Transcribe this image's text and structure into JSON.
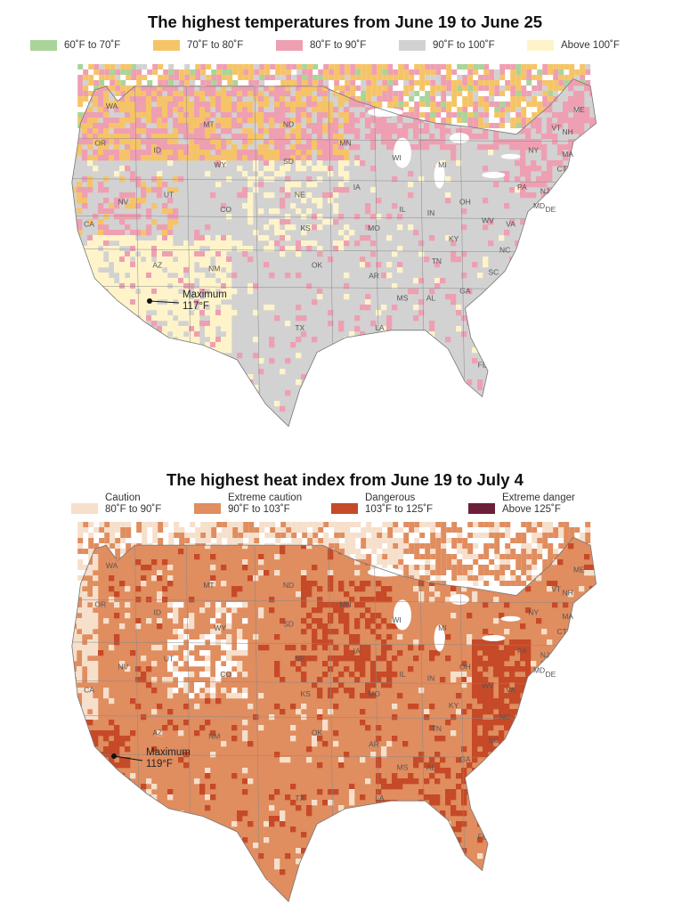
{
  "panels": [
    {
      "title": "The highest temperatures from June 19 to June 25",
      "legend": [
        {
          "label": "60˚F to 70˚F",
          "color": "#a9d49a"
        },
        {
          "label": "70˚F to 80˚F",
          "color": "#f6c468"
        },
        {
          "label": "80˚F to 90˚F",
          "color": "#ef9fb2"
        },
        {
          "label": "90˚F to 100˚F",
          "color": "#d2d2d2"
        },
        {
          "label": "Above 100˚F",
          "color": "#fff4c9"
        }
      ],
      "annotation": {
        "label": "Maximum",
        "value": "117°F"
      }
    },
    {
      "title": "The highest heat index from June 19 to July 4",
      "legend": [
        {
          "line1": "Caution",
          "line2": "80˚F to 90˚F",
          "color": "#f6dfcb"
        },
        {
          "line1": "Extreme caution",
          "line2": "90˚F to 103˚F",
          "color": "#e08d5f"
        },
        {
          "line1": "Dangerous",
          "line2": "103˚F to 125˚F",
          "color": "#c64a27"
        },
        {
          "line1": "Extreme danger",
          "line2": "Above 125˚F",
          "color": "#6b1f3b"
        }
      ],
      "annotation": {
        "label": "Maximum",
        "value": "119°F"
      }
    }
  ],
  "state_labels": [
    "WA",
    "OR",
    "CA",
    "ID",
    "NV",
    "MT",
    "WY",
    "UT",
    "AZ",
    "CO",
    "NM",
    "ND",
    "SD",
    "NE",
    "KS",
    "OK",
    "TX",
    "MN",
    "IA",
    "MO",
    "AR",
    "LA",
    "WI",
    "IL",
    "MI",
    "IN",
    "OH",
    "KY",
    "TN",
    "MS",
    "AL",
    "GA",
    "FL",
    "SC",
    "NC",
    "VA",
    "WV",
    "PA",
    "NY",
    "VT",
    "NH",
    "ME",
    "MA",
    "CT",
    "NJ",
    "MD",
    "DE"
  ]
}
